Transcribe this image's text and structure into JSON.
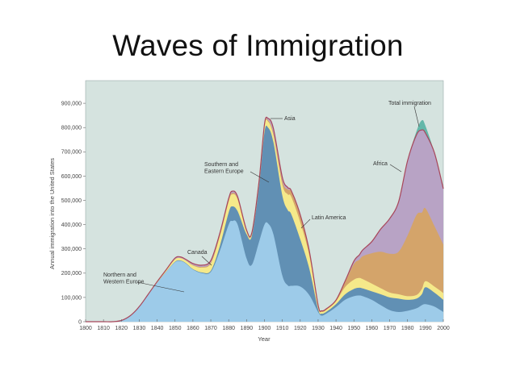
{
  "slide": {
    "title": "Waves of Immigration"
  },
  "colors": {
    "plot_bg": "#d5e3df",
    "nw_europe": "#9dcbe9",
    "se_europe": "#6190b4",
    "canada": "#f5e98a",
    "latin_america": "#d4a46a",
    "asia": "#b8a3c5",
    "africa_line": "#a8465a",
    "total": "#63b7a9"
  },
  "chart_data": {
    "type": "area",
    "stacked": true,
    "title": "Waves of Immigration",
    "xlabel": "Year",
    "ylabel": "Annual immigration into the United States",
    "xlim": [
      1800,
      2000
    ],
    "ylim": [
      0,
      1000000
    ],
    "x_ticks": [
      1800,
      1810,
      1820,
      1830,
      1840,
      1850,
      1860,
      1870,
      1880,
      1890,
      1900,
      1910,
      1920,
      1930,
      1940,
      1950,
      1960,
      1970,
      1980,
      1990,
      2000
    ],
    "y_ticks": [
      0,
      100000,
      200000,
      300000,
      400000,
      500000,
      600000,
      700000,
      800000,
      900000
    ],
    "y_tick_labels": [
      "0",
      "100,000",
      "200,000",
      "300,000",
      "400,000",
      "500,000",
      "600,000",
      "700,000",
      "800,000",
      "900,000"
    ],
    "grid": false,
    "legend_position": "inline annotations",
    "x": [
      1800,
      1810,
      1815,
      1820,
      1825,
      1830,
      1835,
      1840,
      1845,
      1850,
      1853,
      1856,
      1860,
      1865,
      1870,
      1875,
      1880,
      1882,
      1885,
      1890,
      1893,
      1897,
      1900,
      1902,
      1905,
      1910,
      1913,
      1915,
      1920,
      1925,
      1930,
      1932,
      1935,
      1940,
      1945,
      1950,
      1953,
      1955,
      1960,
      1965,
      1970,
      1975,
      1980,
      1985,
      1988,
      1990,
      1995,
      2000
    ],
    "series": [
      {
        "name": "Northern and Western Europe",
        "values": [
          0,
          0,
          0,
          5000,
          25000,
          60000,
          110000,
          160000,
          205000,
          245000,
          250000,
          240000,
          215000,
          200000,
          205000,
          290000,
          400000,
          415000,
          400000,
          260000,
          235000,
          330000,
          400000,
          405000,
          360000,
          190000,
          150000,
          148000,
          145000,
          110000,
          40000,
          25000,
          35000,
          60000,
          90000,
          105000,
          108000,
          105000,
          90000,
          68000,
          48000,
          40000,
          45000,
          55000,
          68000,
          72000,
          62000,
          40000
        ]
      },
      {
        "name": "Southern and Eastern Europe",
        "values": [
          0,
          0,
          0,
          0,
          0,
          0,
          0,
          0,
          1000,
          2000,
          2000,
          2000,
          2000,
          3000,
          5000,
          20000,
          50000,
          60000,
          55000,
          100000,
          120000,
          230000,
          380000,
          395000,
          380000,
          330000,
          310000,
          295000,
          195000,
          110000,
          12000,
          8000,
          8000,
          12000,
          22000,
          30000,
          32000,
          32000,
          35000,
          45000,
          52000,
          55000,
          45000,
          40000,
          45000,
          70000,
          58000,
          50000
        ]
      },
      {
        "name": "Canada",
        "values": [
          0,
          0,
          0,
          0,
          0,
          2000,
          3000,
          5000,
          7000,
          10000,
          10000,
          10000,
          15000,
          20000,
          30000,
          40000,
          45000,
          50000,
          48000,
          10000,
          8000,
          15000,
          25000,
          25000,
          28000,
          45000,
          65000,
          72000,
          70000,
          55000,
          12000,
          8000,
          8000,
          12000,
          30000,
          38000,
          40000,
          38000,
          32000,
          25000,
          20000,
          18000,
          15000,
          15000,
          22000,
          25000,
          25000,
          28000
        ]
      },
      {
        "name": "Latin America",
        "values": [
          0,
          0,
          0,
          0,
          0,
          0,
          0,
          0,
          0,
          0,
          0,
          0,
          2000,
          3000,
          4000,
          5000,
          5000,
          5000,
          5000,
          3000,
          2000,
          2000,
          3000,
          5000,
          8000,
          15000,
          20000,
          20000,
          25000,
          15000,
          4000,
          3000,
          3000,
          4000,
          20000,
          65000,
          75000,
          95000,
          125000,
          150000,
          160000,
          175000,
          250000,
          330000,
          315000,
          300000,
          250000,
          200000
        ]
      },
      {
        "name": "Asia",
        "values": [
          0,
          0,
          0,
          0,
          0,
          0,
          0,
          0,
          1000,
          5000,
          5000,
          5000,
          6000,
          7000,
          8000,
          8000,
          8000,
          8000,
          7000,
          4000,
          3000,
          4000,
          5000,
          8000,
          20000,
          15000,
          8000,
          5000,
          6000,
          4000,
          1000,
          1000,
          1000,
          1000,
          3000,
          10000,
          18000,
          24000,
          45000,
          90000,
          140000,
          200000,
          300000,
          320000,
          330000,
          300000,
          290000,
          215000
        ]
      },
      {
        "name": "Africa",
        "values": [
          0,
          0,
          0,
          0,
          0,
          0,
          0,
          0,
          0,
          0,
          0,
          0,
          0,
          0,
          0,
          0,
          0,
          0,
          0,
          0,
          0,
          0,
          0,
          0,
          0,
          0,
          0,
          0,
          0,
          0,
          0,
          0,
          0,
          0,
          1000,
          2000,
          2000,
          2000,
          3000,
          4000,
          5000,
          6000,
          8000,
          10000,
          10000,
          10000,
          12000,
          15000
        ]
      },
      {
        "name": "Total immigration",
        "values": [
          0,
          0,
          0,
          0,
          0,
          0,
          0,
          0,
          0,
          0,
          0,
          0,
          0,
          0,
          0,
          0,
          0,
          0,
          0,
          0,
          0,
          0,
          0,
          0,
          0,
          0,
          0,
          0,
          0,
          0,
          0,
          0,
          0,
          0,
          0,
          0,
          0,
          0,
          0,
          0,
          0,
          0,
          0,
          15000,
          40000,
          30000,
          0,
          0
        ]
      }
    ],
    "annotations": [
      {
        "label": "Northern and Western Europe",
        "x": 1855,
        "y": 130000
      },
      {
        "label": "Canada",
        "x": 1869,
        "y": 230000
      },
      {
        "label": "Southern and Eastern Europe",
        "x": 1903,
        "y": 570000
      },
      {
        "label": "Asia",
        "x": 1903,
        "y": 840000
      },
      {
        "label": "Latin America",
        "x": 1922,
        "y": 390000
      },
      {
        "label": "Africa",
        "x": 1979,
        "y": 620000
      },
      {
        "label": "Total immigration",
        "x": 1987,
        "y": 800000
      }
    ]
  },
  "labels": {
    "nw_europe_line1": "Northern and",
    "nw_europe_line2": "Western Europe",
    "canada": "Canada",
    "se_europe_line1": "Southern and",
    "se_europe_line2": "Eastern Europe",
    "asia": "Asia",
    "latin_america": "Latin America",
    "africa": "Africa",
    "total": "Total immigration"
  }
}
